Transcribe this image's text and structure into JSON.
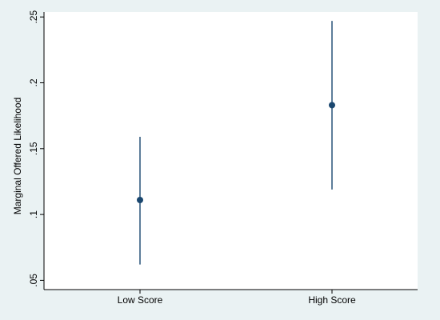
{
  "chart_data": {
    "type": "scatter",
    "ylabel": "Marginal Offered Likelihood",
    "xlabel": "",
    "categories": [
      "Low Score",
      "High Score"
    ],
    "ylim": [
      0.045,
      0.255
    ],
    "y_ticks": [
      0.05,
      0.1,
      0.15,
      0.2,
      0.25
    ],
    "y_tick_labels": [
      ".05",
      ".1",
      ".15",
      ".2",
      ".25"
    ],
    "grid": false,
    "points": [
      {
        "category": "Low Score",
        "estimate": 0.111,
        "ci_low": 0.062,
        "ci_high": 0.159
      },
      {
        "category": "High Score",
        "estimate": 0.183,
        "ci_low": 0.119,
        "ci_high": 0.247
      }
    ],
    "colors": {
      "background": "#eaf2f3",
      "plot_background": "#ffffff",
      "marker": "#1a476f",
      "axis": "#000000"
    }
  }
}
